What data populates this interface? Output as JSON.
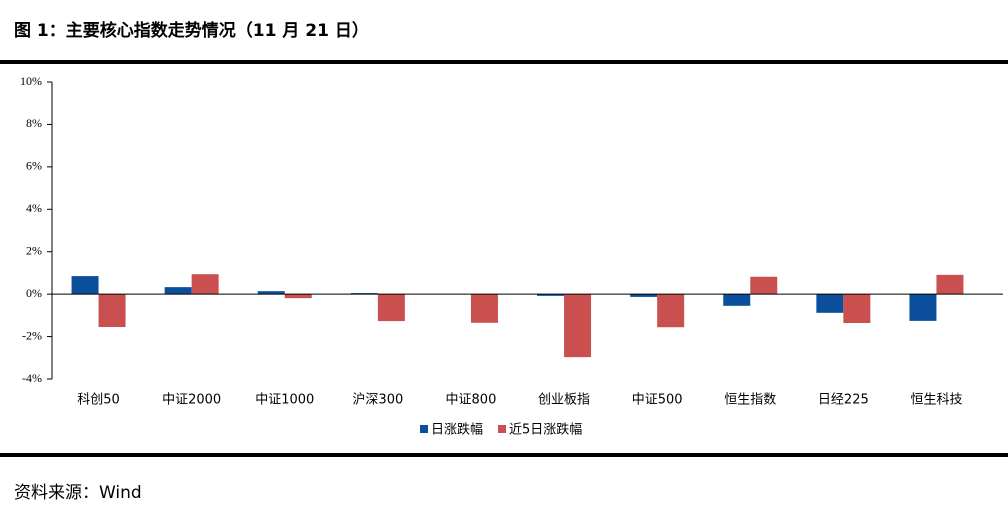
{
  "chart_data": {
    "type": "bar",
    "title": "图 1：主要核心指数走势情况（11 月 21 日）",
    "source": "资料来源：Wind",
    "categories": [
      "科创50",
      "中证2000",
      "中证1000",
      "沪深300",
      "中证800",
      "创业板指",
      "中证500",
      "恒生指数",
      "日经225",
      "恒生科技"
    ],
    "series": [
      {
        "name": "日涨跌幅",
        "color": "#0b4f9c",
        "values": [
          0.85,
          0.33,
          0.14,
          0.05,
          -0.01,
          -0.08,
          -0.13,
          -0.55,
          -0.88,
          -1.26
        ]
      },
      {
        "name": "近5日涨跌幅",
        "color": "#c9504f",
        "values": [
          -1.55,
          0.94,
          -0.19,
          -1.27,
          -1.35,
          -2.97,
          -1.56,
          0.82,
          -1.36,
          0.91
        ]
      }
    ],
    "ylim": [
      -4,
      10
    ],
    "yticks": [
      {
        "value": -4,
        "label": "-4%"
      },
      {
        "value": -2,
        "label": "-2%"
      },
      {
        "value": 0,
        "label": "0%"
      },
      {
        "value": 2,
        "label": "2%"
      },
      {
        "value": 4,
        "label": "4%"
      },
      {
        "value": 6,
        "label": "6%"
      },
      {
        "value": 8,
        "label": "8%"
      },
      {
        "value": 10,
        "label": "10%"
      }
    ],
    "legend": "bottom"
  }
}
